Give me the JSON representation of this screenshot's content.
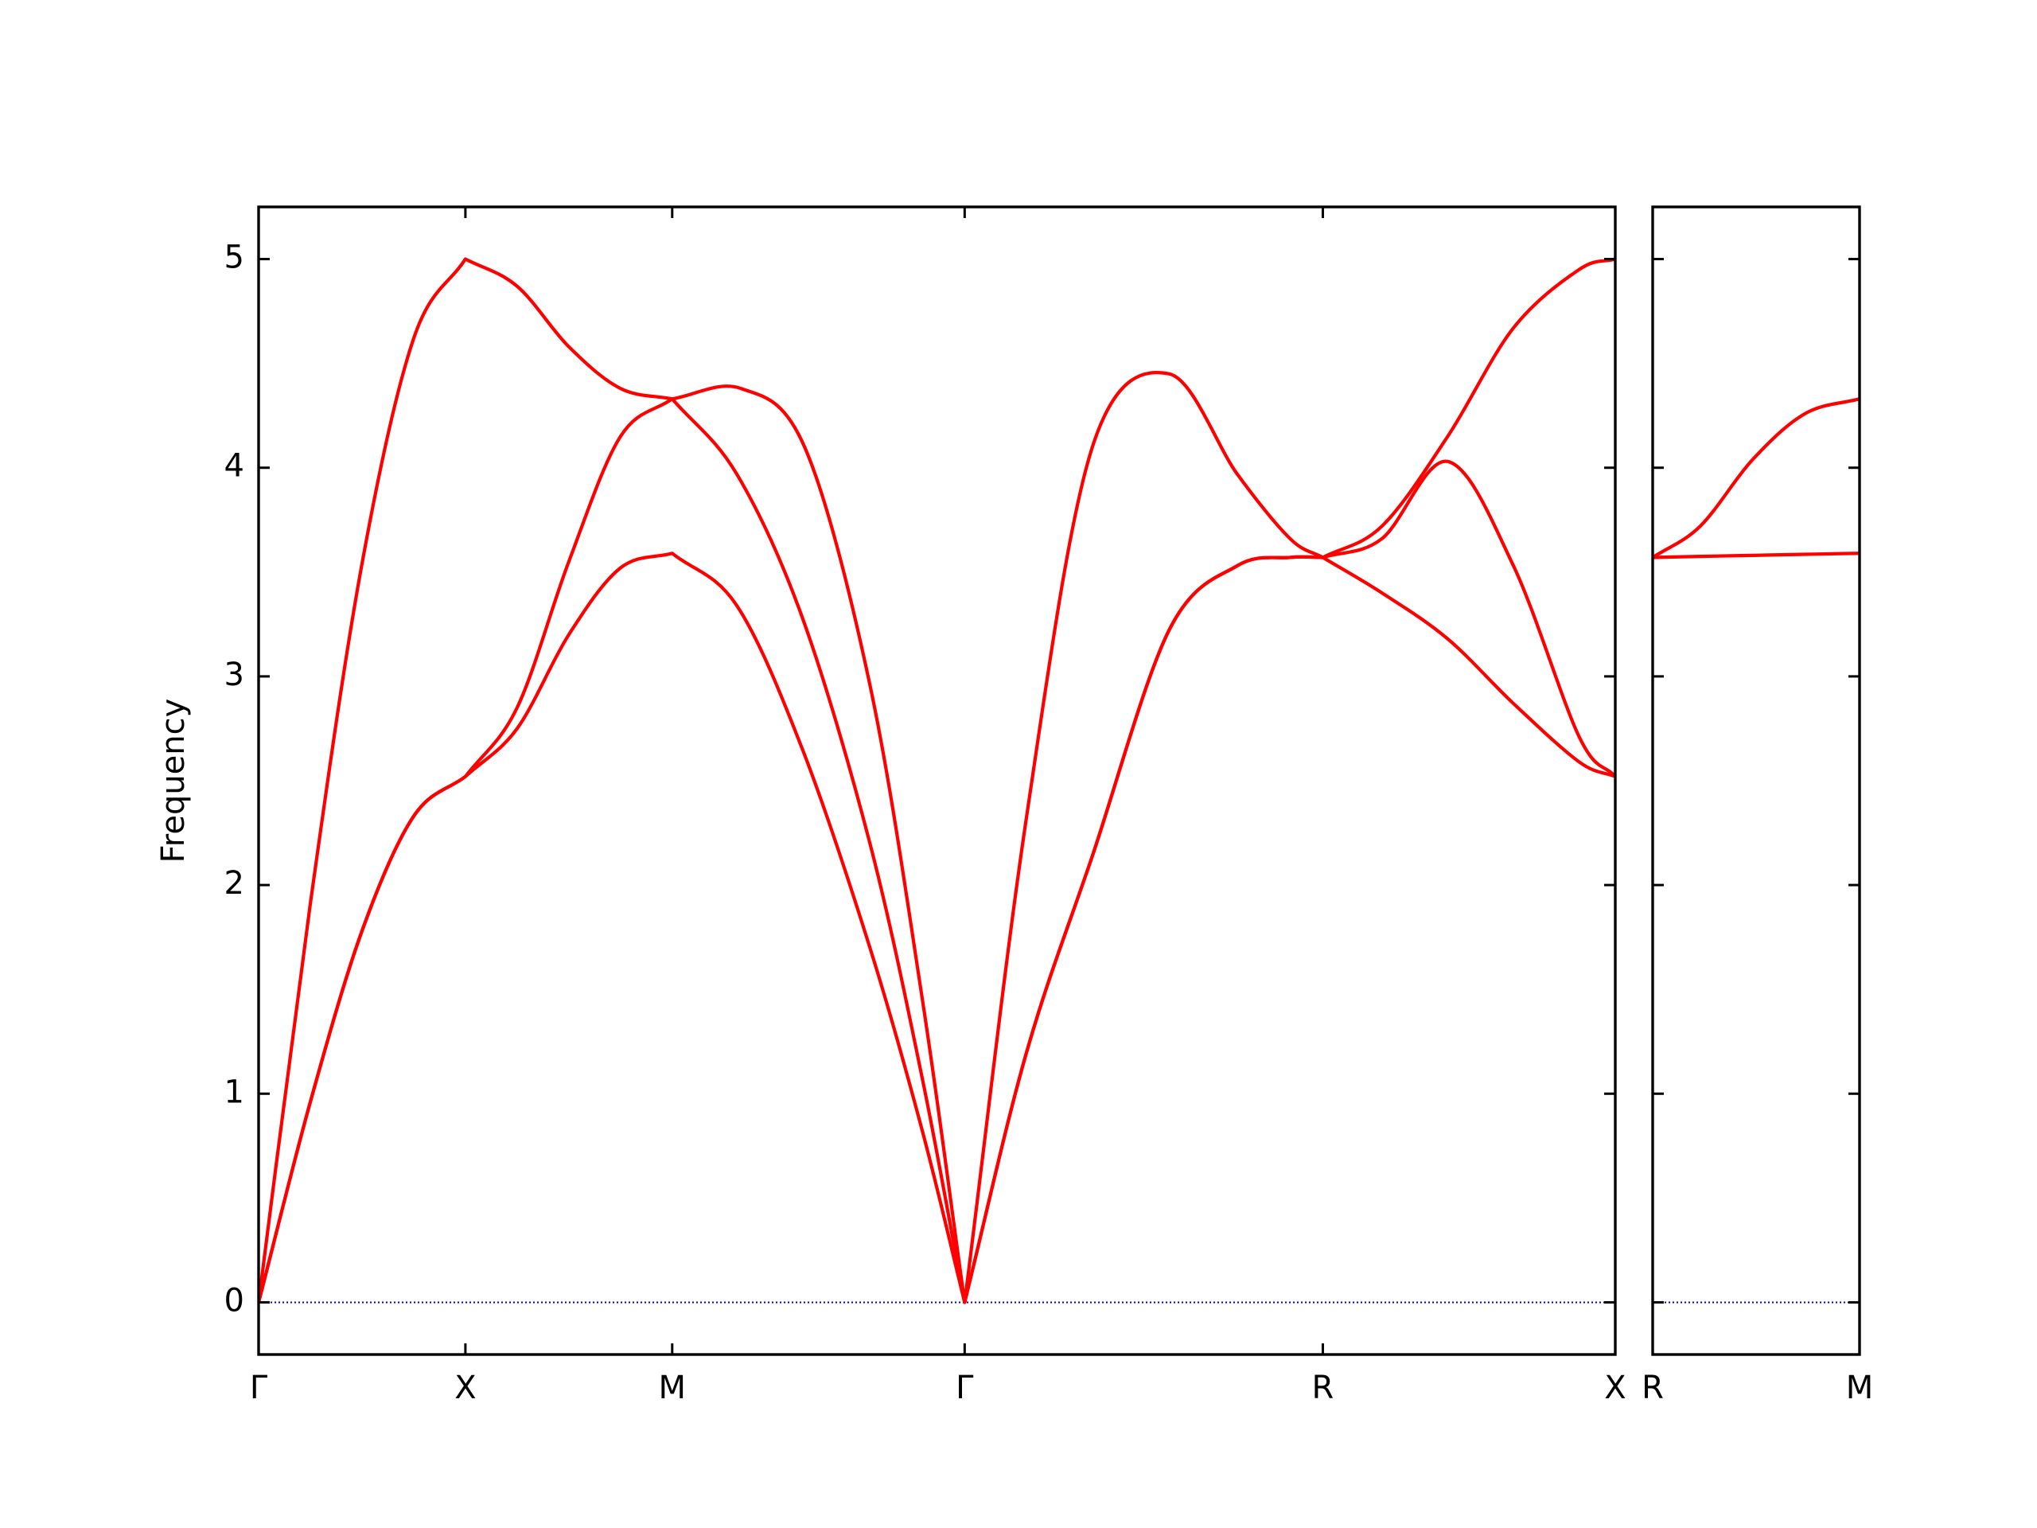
{
  "chart_data": [
    {
      "type": "line",
      "ylabel": "Frequency",
      "xlim": [
        0,
        3.2802
      ],
      "ylim": [
        -0.25,
        5.25
      ],
      "xticks": [
        {
          "value": 0,
          "label": "Γ"
        },
        {
          "value": 0.5,
          "label": "X"
        },
        {
          "value": 1.0,
          "label": "M"
        },
        {
          "value": 1.7071,
          "label": "Γ"
        },
        {
          "value": 2.5731,
          "label": "R"
        },
        {
          "value": 3.2802,
          "label": "X"
        }
      ],
      "yticks": [
        0,
        1,
        2,
        3,
        4,
        5
      ],
      "show_ytick_labels": true,
      "hline": 0,
      "hline_color": "#0000cc",
      "series": [
        {
          "color": "#ff0000",
          "x": [
            0,
            0.125,
            0.25,
            0.375,
            0.5,
            0.625,
            0.75,
            0.875,
            1.0,
            1.166,
            1.32,
            1.478,
            1.605,
            1.7071,
            1.857,
            2.016,
            2.201,
            2.366,
            2.494,
            2.5731,
            2.716,
            2.875,
            3.034,
            3.193,
            3.2802
          ],
          "values": [
            0,
            1.91,
            3.54,
            4.62,
            5.0,
            4.87,
            4.58,
            4.38,
            4.33,
            4.38,
            4.1,
            2.96,
            1.45,
            0,
            2.33,
            4.1,
            4.45,
            3.97,
            3.66,
            3.57,
            3.72,
            4.15,
            4.67,
            4.95,
            5.0
          ]
        },
        {
          "color": "#ff0000",
          "x": [
            0,
            0.125,
            0.25,
            0.375,
            0.5,
            0.625,
            0.75,
            0.875,
            1.0,
            1.156,
            1.315,
            1.478,
            1.605,
            1.7071,
            1.857,
            2.016,
            2.201,
            2.366,
            2.494,
            2.5731,
            2.716,
            2.875,
            3.034,
            3.193,
            3.2802
          ],
          "values": [
            0,
            0.96,
            1.78,
            2.33,
            2.52,
            2.85,
            3.55,
            4.15,
            4.33,
            3.97,
            3.28,
            2.2,
            1.07,
            0,
            1.2,
            2.14,
            3.22,
            3.53,
            3.57,
            3.57,
            3.66,
            4.03,
            3.53,
            2.71,
            2.52
          ]
        },
        {
          "color": "#ff0000",
          "x": [
            0,
            0.125,
            0.25,
            0.375,
            0.5,
            0.625,
            0.75,
            0.875,
            1.0,
            1.156,
            1.315,
            1.478,
            1.605,
            1.7071,
            1.857,
            2.016,
            2.201,
            2.366,
            2.494,
            2.5731,
            2.716,
            2.875,
            3.034,
            3.193,
            3.2802
          ],
          "values": [
            0,
            0.96,
            1.78,
            2.33,
            2.52,
            2.75,
            3.2,
            3.52,
            3.59,
            3.34,
            2.65,
            1.7,
            0.82,
            0,
            1.2,
            2.14,
            3.22,
            3.53,
            3.57,
            3.57,
            3.4,
            3.18,
            2.87,
            2.59,
            2.52
          ]
        }
      ]
    },
    {
      "type": "line",
      "xlim": [
        0,
        0.5
      ],
      "ylim": [
        -0.25,
        5.25
      ],
      "xticks": [
        {
          "value": 0,
          "label": "R"
        },
        {
          "value": 0.5,
          "label": "M"
        }
      ],
      "yticks": [
        0,
        1,
        2,
        3,
        4,
        5
      ],
      "show_ytick_labels": false,
      "hline": 0,
      "hline_color": "#0000cc",
      "series": [
        {
          "color": "#ff0000",
          "x": [
            0,
            0.115,
            0.242,
            0.369,
            0.5
          ],
          "values": [
            3.57,
            3.72,
            4.04,
            4.26,
            4.33
          ]
        },
        {
          "color": "#ff0000",
          "x": [
            0,
            0.115,
            0.242,
            0.369,
            0.5
          ],
          "values": [
            3.57,
            3.575,
            3.58,
            3.585,
            3.59
          ]
        }
      ]
    }
  ]
}
